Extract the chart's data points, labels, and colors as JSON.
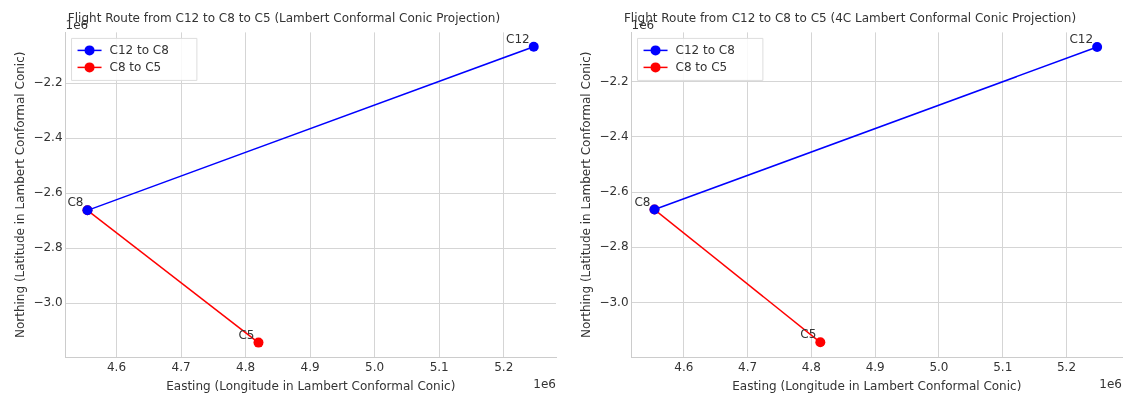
{
  "chart_data": [
    {
      "type": "line",
      "title": "Flight Route from C12 to C8 to C5 (Lambert Conformal Conic Projection)",
      "xlabel": "Easting (Longitude in Lambert Conformal Conic)",
      "ylabel": "Northing (Latitude in Lambert Conformal Conic)",
      "series": [
        {
          "name": "C12 to C8",
          "color": "#0000ff",
          "x": [
            5.2465,
            4.555
          ],
          "values": [
            -2.067,
            -2.662
          ]
        },
        {
          "name": "C8 to C5",
          "color": "#ff0000",
          "x": [
            4.555,
            4.82
          ],
          "values": [
            -2.662,
            -3.143
          ]
        }
      ],
      "xlim": [
        4.521,
        5.281
      ],
      "ylim": [
        -3.196,
        -2.015
      ],
      "xticks": [
        4.6,
        4.7,
        4.8,
        4.9,
        {
          "value": 5,
          "label": "5.0"
        },
        5.1,
        5.2
      ],
      "yticks": [
        {
          "value": -3,
          "label": "−3.0"
        },
        {
          "value": -2.8,
          "label": "−2.8"
        },
        {
          "value": -2.6,
          "label": "−2.6"
        },
        {
          "value": -2.4,
          "label": "−2.4"
        },
        {
          "value": -2.2,
          "label": "−2.2"
        }
      ],
      "annotations": [
        "1e6",
        "1e6",
        {
          "text": "C12",
          "x": 5.2465,
          "y": -2.067
        },
        {
          "text": "C8",
          "x": 4.555,
          "y": -2.662
        },
        {
          "text": "C5",
          "x": 4.82,
          "y": -3.143
        }
      ],
      "grid": true,
      "legend": "top left",
      "marker": "circle",
      "line_style": "solid"
    },
    {
      "type": "line",
      "title": "Flight Route from C12 to C8 to C5 (4C Lambert Conformal Conic Projection)",
      "xlabel": "Easting (Longitude in Lambert Conformal Conic)",
      "ylabel": "Northing (Latitude in Lambert Conformal Conic)",
      "series": [
        {
          "name": "C12 to C8",
          "color": "#0000ff",
          "x": [
            5.248,
            4.554
          ],
          "values": [
            -2.074,
            -2.663
          ]
        },
        {
          "name": "C8 to C5",
          "color": "#ff0000",
          "x": [
            4.554,
            4.814
          ],
          "values": [
            -2.663,
            -3.144
          ]
        }
      ],
      "xlim": [
        4.518,
        5.287
      ],
      "ylim": [
        -3.198,
        -2.021
      ],
      "xticks": [
        4.6,
        4.7,
        4.8,
        4.9,
        {
          "value": 5,
          "label": "5.0"
        },
        5.1,
        5.2
      ],
      "yticks": [
        {
          "value": -3,
          "label": "−3.0"
        },
        {
          "value": -2.8,
          "label": "−2.8"
        },
        {
          "value": -2.6,
          "label": "−2.6"
        },
        {
          "value": -2.4,
          "label": "−2.4"
        },
        {
          "value": -2.2,
          "label": "−2.2"
        }
      ],
      "annotations": [
        "1e6",
        "1e6",
        {
          "text": "C12",
          "x": 5.248,
          "y": -2.074
        },
        {
          "text": "C8",
          "x": 4.554,
          "y": -2.663
        },
        {
          "text": "C5",
          "x": 4.814,
          "y": -3.144
        }
      ],
      "grid": true,
      "legend": "top left",
      "marker": "circle",
      "line_style": "solid"
    }
  ]
}
